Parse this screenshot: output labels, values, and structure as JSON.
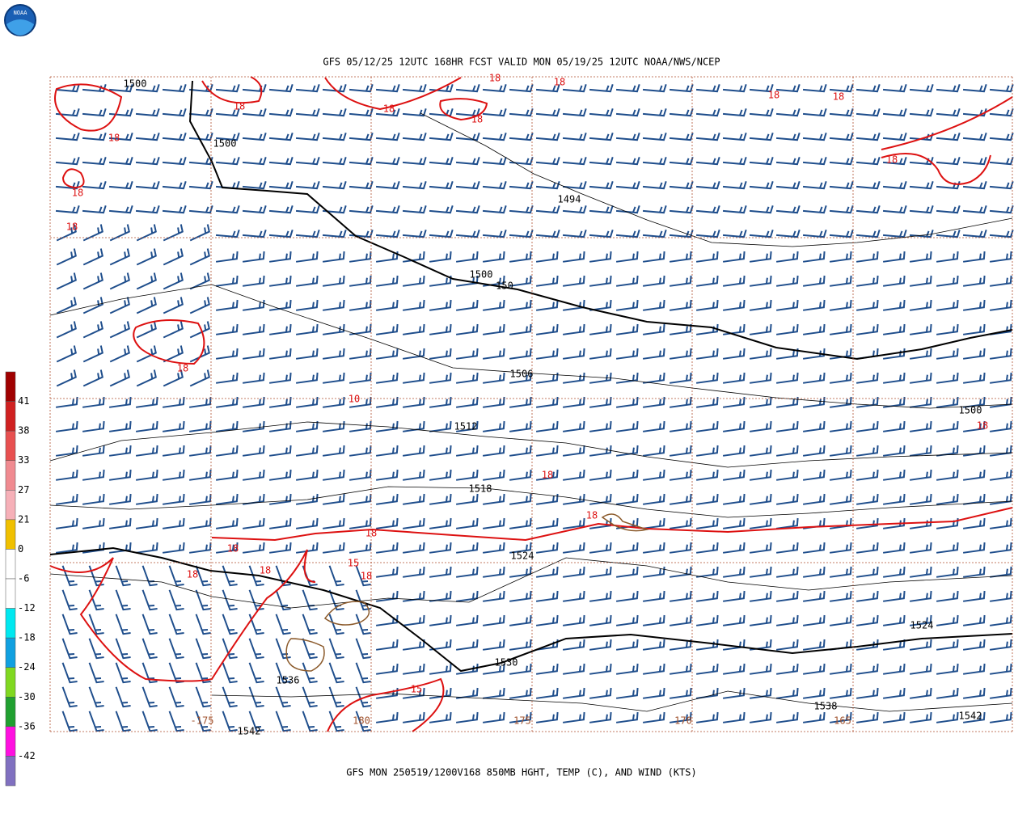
{
  "header": {
    "title": "GFS 05/12/25 12UTC 168HR FCST VALID MON 05/19/25 12UTC NOAA/NWS/NCEP",
    "logo": "NOAA"
  },
  "footer": {
    "caption": "GFS MON 250519/1200V168 850MB HGHT, TEMP (C), AND WIND (KTS)"
  },
  "colorbar": {
    "labels": [
      41,
      38,
      33,
      27,
      21,
      0,
      -6,
      -12,
      -18,
      -24,
      -30,
      -36,
      -42
    ],
    "colors": [
      "#a00000",
      "#d02020",
      "#e85050",
      "#f08a90",
      "#f6b0b8",
      "#f0c000",
      "#ffffff",
      "#ffffff",
      "#00e8f0",
      "#10a0e0",
      "#80d820",
      "#20a030",
      "#ff10e0",
      "#8070c0",
      "#9040e0",
      "#800080"
    ]
  },
  "height_labels": {
    "color": "#000000",
    "items": [
      "1500",
      "1500",
      "1494",
      "1500",
      "150",
      "1506",
      "1512",
      "1518",
      "1524",
      "1530",
      "1536",
      "1542",
      "1538",
      "1542",
      "1524",
      "1500"
    ]
  },
  "temp_labels": {
    "color": "#dd1111",
    "items": [
      "18",
      "18",
      "18",
      "18",
      "18",
      "18",
      "18",
      "18",
      "18",
      "18",
      "18",
      "18",
      "18",
      "18",
      "18",
      "18",
      "18",
      "18",
      "15",
      "18",
      "15",
      "18",
      "10"
    ]
  },
  "lon_labels": {
    "color": "#a0522d",
    "items": [
      "-175",
      "180",
      "175",
      "170",
      "165"
    ]
  }
}
